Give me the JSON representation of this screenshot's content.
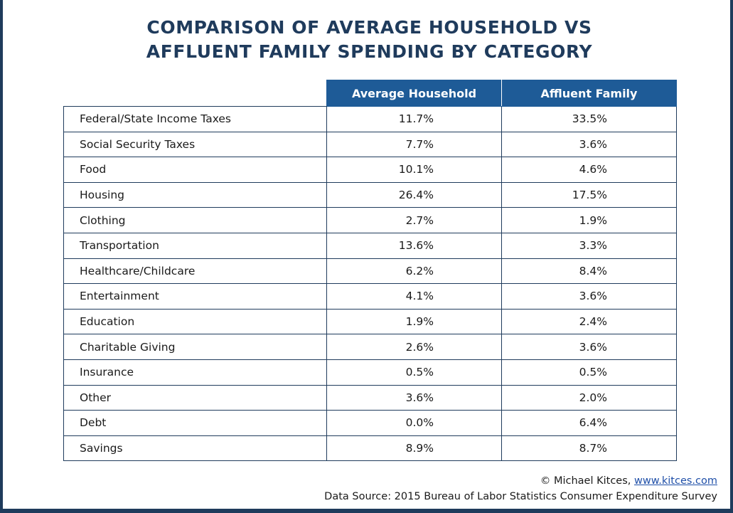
{
  "chart_data": {
    "type": "table",
    "title_lines": [
      "COMPARISON OF AVERAGE HOUSEHOLD VS",
      "AFFLUENT FAMILY SPENDING BY CATEGORY"
    ],
    "columns": [
      "Average Household",
      "Affluent Family"
    ],
    "rows": [
      {
        "category": "Federal/State Income Taxes",
        "values": [
          "11.7%",
          "33.5%"
        ]
      },
      {
        "category": "Social Security Taxes",
        "values": [
          "7.7%",
          "3.6%"
        ]
      },
      {
        "category": "Food",
        "values": [
          "10.1%",
          "4.6%"
        ]
      },
      {
        "category": "Housing",
        "values": [
          "26.4%",
          "17.5%"
        ]
      },
      {
        "category": "Clothing",
        "values": [
          "2.7%",
          "1.9%"
        ]
      },
      {
        "category": "Transportation",
        "values": [
          "13.6%",
          "3.3%"
        ]
      },
      {
        "category": "Healthcare/Childcare",
        "values": [
          "6.2%",
          "8.4%"
        ]
      },
      {
        "category": "Entertainment",
        "values": [
          "4.1%",
          "3.6%"
        ]
      },
      {
        "category": "Education",
        "values": [
          "1.9%",
          "2.4%"
        ]
      },
      {
        "category": "Charitable Giving",
        "values": [
          "2.6%",
          "3.6%"
        ]
      },
      {
        "category": "Insurance",
        "values": [
          "0.5%",
          "0.5%"
        ]
      },
      {
        "category": "Other",
        "values": [
          "3.6%",
          "2.0%"
        ]
      },
      {
        "category": "Debt",
        "values": [
          "0.0%",
          "6.4%"
        ]
      },
      {
        "category": "Savings",
        "values": [
          "8.9%",
          "8.7%"
        ]
      }
    ]
  },
  "footer": {
    "credit_prefix": "© Michael Kitces, ",
    "credit_link": "www.kitces.com",
    "source": "Data Source: 2015 Bureau of Labor Statistics Consumer Expenditure Survey"
  },
  "colors": {
    "title": "#1f3b5c",
    "header_fill": "#1e5b97",
    "border": "#1f3b5c",
    "link": "#1f4fa8"
  }
}
